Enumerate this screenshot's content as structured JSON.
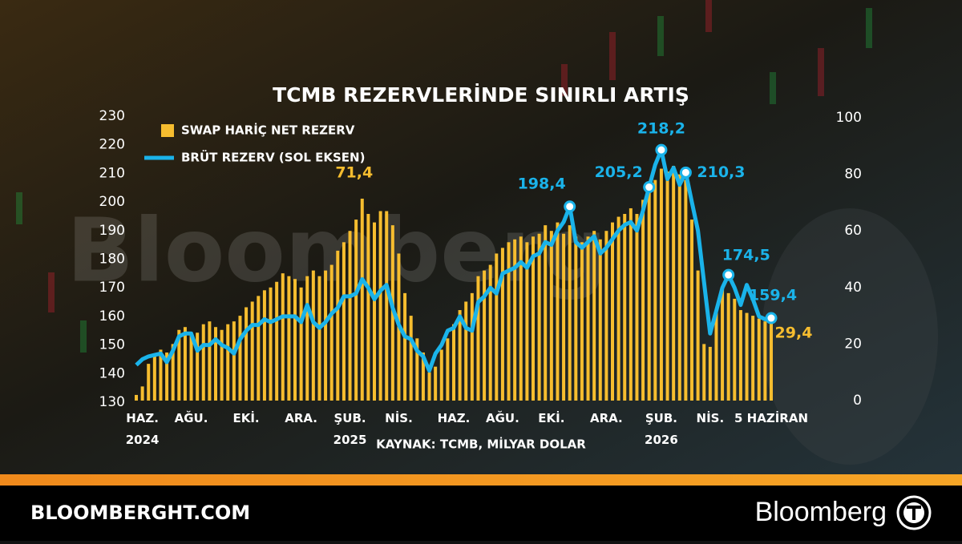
{
  "chart_data": {
    "type": "combo",
    "title": "TCMB REZERVLERİNDE SINIRLI ARTIŞ",
    "source": "KAYNAK: TCMB, MİLYAR DOLAR",
    "watermark": "Bloomberg",
    "categories": [
      null,
      "HAZ.\n2024",
      null,
      null,
      null,
      null,
      null,
      null,
      null,
      "AĞU.",
      null,
      null,
      null,
      null,
      null,
      null,
      null,
      null,
      "EKİ.",
      null,
      null,
      null,
      null,
      null,
      null,
      null,
      null,
      "ARA.",
      null,
      null,
      null,
      null,
      null,
      null,
      null,
      "ŞUB.\n2025",
      null,
      null,
      null,
      null,
      null,
      null,
      null,
      "NİS.",
      null,
      null,
      null,
      null,
      null,
      null,
      null,
      null,
      "HAZ.",
      null,
      null,
      null,
      null,
      null,
      null,
      null,
      "AĞU.",
      null,
      null,
      null,
      null,
      null,
      null,
      null,
      "EKİ.",
      null,
      null,
      null,
      null,
      null,
      null,
      null,
      null,
      "ARA.",
      null,
      null,
      null,
      null,
      null,
      null,
      null,
      null,
      "ŞUB.\n2026",
      null,
      null,
      null,
      null,
      null,
      null,
      null,
      "NİS.",
      null,
      null,
      null,
      null,
      null,
      null,
      null,
      null,
      null,
      "5 HAZİRAN"
    ],
    "series": [
      {
        "name": "SWAP HARİÇ NET REZERV",
        "type": "bar",
        "axis": "y2",
        "color": "#f6bd2f",
        "values": [
          2,
          5,
          13,
          16,
          18,
          17,
          20,
          25,
          26,
          24,
          24,
          27,
          28,
          26,
          25,
          27,
          28,
          30,
          33,
          35,
          37,
          39,
          40,
          42,
          45,
          44,
          43,
          40,
          44,
          46,
          44,
          46,
          48,
          53,
          56,
          60,
          64,
          71.4,
          66,
          63,
          67,
          67,
          62,
          52,
          38,
          30,
          22,
          17,
          10,
          12,
          18,
          22,
          27,
          32,
          35,
          38,
          44,
          46,
          48,
          52,
          54,
          56,
          57,
          58,
          56,
          58,
          59,
          62,
          60,
          63,
          59,
          62,
          58,
          56,
          58,
          60,
          57,
          60,
          63,
          65,
          66,
          68,
          66,
          71,
          74,
          78,
          82,
          81,
          83,
          80,
          78,
          64,
          46,
          20,
          19,
          32,
          40,
          38,
          36,
          32,
          31,
          30,
          29,
          28,
          29.4
        ],
        "value_labels": [
          null,
          null,
          null,
          null,
          null,
          null,
          null,
          null,
          null,
          null,
          null,
          null,
          null,
          null,
          null,
          null,
          null,
          null,
          null,
          null,
          null,
          null,
          null,
          null,
          null,
          null,
          null,
          null,
          null,
          null,
          null,
          null,
          null,
          null,
          null,
          null,
          null,
          "71,4",
          null,
          null,
          null,
          null,
          null,
          null,
          null,
          null,
          null,
          null,
          null,
          null,
          null,
          null,
          null,
          null,
          null,
          null,
          null,
          null,
          null,
          null,
          null,
          null,
          null,
          null,
          null,
          null,
          null,
          null,
          null,
          null,
          null,
          null,
          null,
          null,
          null,
          null,
          null,
          null,
          null,
          null,
          null,
          null,
          null,
          null,
          null,
          null,
          null,
          null,
          null,
          null,
          null,
          null,
          null,
          null,
          null,
          null,
          null,
          null,
          null,
          null,
          null,
          null,
          null,
          null,
          "29,4"
        ]
      },
      {
        "name": "BRÜT REZERV (SOL EKSEN)",
        "type": "line",
        "color": "#1ab3ea",
        "values": [
          143,
          145,
          146,
          146.5,
          147,
          144,
          148,
          153,
          154,
          154,
          148,
          150,
          150,
          152,
          150,
          149,
          147,
          152,
          155,
          157,
          157,
          159,
          158,
          159,
          160,
          160,
          160,
          158,
          164,
          158,
          156,
          158,
          161,
          163,
          167,
          167,
          168,
          173,
          170,
          166,
          169,
          171,
          163,
          157,
          153,
          152,
          148,
          146,
          141,
          147,
          150,
          155,
          156,
          160,
          156,
          155,
          165,
          167,
          170,
          168,
          175,
          176,
          177,
          179,
          177,
          181,
          182,
          186,
          185,
          190,
          193,
          198.4,
          186,
          184,
          186,
          188,
          182,
          184,
          187,
          190,
          192,
          193,
          190,
          197,
          205.2,
          213,
          218.2,
          208,
          212,
          206,
          210.3,
          200,
          190,
          172,
          154,
          162,
          170,
          174.5,
          170,
          164,
          171,
          166,
          160,
          159,
          159.4
        ],
        "value_labels": [
          null,
          null,
          null,
          null,
          null,
          null,
          null,
          null,
          null,
          null,
          null,
          null,
          null,
          null,
          null,
          null,
          null,
          null,
          null,
          null,
          null,
          null,
          null,
          null,
          null,
          null,
          null,
          null,
          null,
          null,
          null,
          null,
          null,
          null,
          null,
          null,
          null,
          null,
          null,
          null,
          null,
          null,
          null,
          null,
          null,
          null,
          null,
          null,
          null,
          null,
          null,
          null,
          null,
          null,
          null,
          null,
          null,
          null,
          null,
          null,
          null,
          null,
          null,
          null,
          null,
          null,
          null,
          null,
          null,
          null,
          null,
          "198,4",
          null,
          null,
          null,
          null,
          null,
          null,
          null,
          null,
          null,
          null,
          null,
          null,
          "205,2",
          null,
          "218,2",
          null,
          null,
          null,
          "210,3",
          null,
          null,
          null,
          null,
          null,
          null,
          "174,5",
          null,
          null,
          null,
          null,
          null,
          null,
          "159,4"
        ]
      }
    ],
    "ylim": [
      130,
      230
    ],
    "yticks": [
      130,
      140,
      150,
      160,
      170,
      180,
      190,
      200,
      210,
      220,
      230
    ],
    "y2lim": [
      0,
      100
    ],
    "y2ticks": [
      0,
      20,
      40,
      60,
      80,
      100
    ]
  },
  "footer": {
    "site": "BLOOMBERGHT.COM",
    "brand": "Bloomberg"
  }
}
